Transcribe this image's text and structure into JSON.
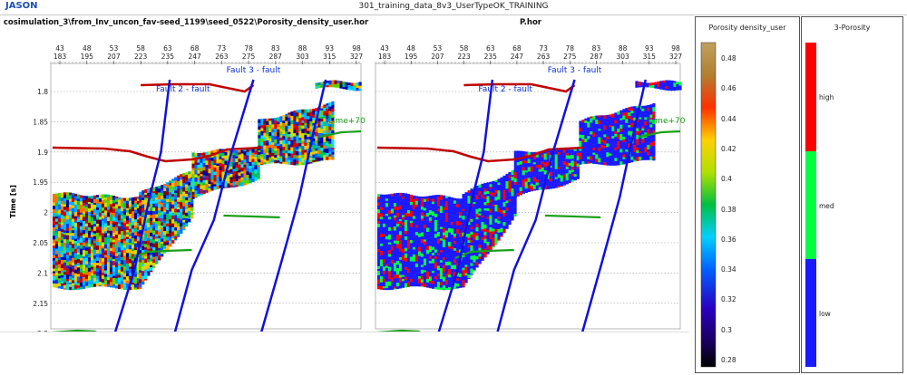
{
  "app": {
    "brand": "JASON",
    "window_title": "301_training_data_8v3_UserTypeOK_TRAINING"
  },
  "left_panel": {
    "title": "cosimulation_3\\from_Inv_uncon_fav-seed_1199\\seed_0522\\Porosity_density_user.hor"
  },
  "right_panel": {
    "title": "P.hor"
  },
  "x_axis": {
    "row1": [
      "43",
      "48",
      "53",
      "58",
      "63",
      "68",
      "73",
      "78",
      "83",
      "88",
      "93",
      "98"
    ],
    "row2": [
      "183",
      "195",
      "207",
      "223",
      "235",
      "247",
      "263",
      "275",
      "287",
      "303",
      "315",
      "327"
    ]
  },
  "y_axis": {
    "title": "Time [s]",
    "labels": [
      "1.8",
      "1.85",
      "1.9",
      "1.95",
      "2",
      "2.05",
      "2.1",
      "2.15",
      "2.2"
    ]
  },
  "annotations": {
    "fault2": "Fault 2 - fault",
    "fault3": "Fault 3 - fault",
    "lime": "Lime+70"
  },
  "colorbar_continuous": {
    "title": "Porosity density_user",
    "labels": [
      "0.48",
      "0.46",
      "0.44",
      "0.42",
      "0.4",
      "0.38",
      "0.36",
      "0.34",
      "0.32",
      "0.3",
      "0.28"
    ]
  },
  "colorbar_discrete": {
    "title": "3-Porosity",
    "classes": [
      {
        "label": "high",
        "color": "#ff0000"
      },
      {
        "label": "med",
        "color": "#00ff40"
      },
      {
        "label": "low",
        "color": "#1a1aff"
      }
    ]
  }
}
